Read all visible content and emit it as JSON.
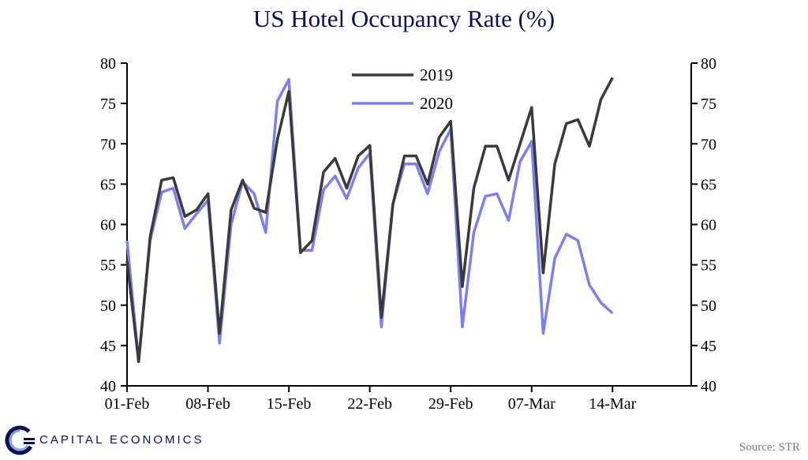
{
  "header": {
    "title": "US Hotel Occupancy Rate (%)"
  },
  "footer": {
    "brand": "CAPITAL ECONOMICS",
    "source": "Source: STR"
  },
  "colors": {
    "series_2019": "#3a3a3a",
    "series_2020": "#7e7ef2",
    "brand": "#0a1150"
  },
  "chart_data": {
    "type": "line",
    "x_axis_type": "daily",
    "x_start": "01-Feb",
    "x_ticks": [
      "01-Feb",
      "08-Feb",
      "15-Feb",
      "22-Feb",
      "29-Feb",
      "07-Mar",
      "14-Mar"
    ],
    "xlabel": "",
    "ylabel": "",
    "ylim": [
      40,
      80
    ],
    "y_ticks": [
      40,
      45,
      50,
      55,
      60,
      65,
      70,
      75,
      80
    ],
    "y_ticks_right": [
      40,
      45,
      50,
      55,
      60,
      65,
      70,
      75,
      80
    ],
    "grid": false,
    "legend_position": "top-center",
    "series": [
      {
        "name": "2019",
        "color": "#3a3a3a",
        "values": [
          55.5,
          43.0,
          58.5,
          65.5,
          65.8,
          61.0,
          61.8,
          63.8,
          46.5,
          61.8,
          65.5,
          62.0,
          61.5,
          70.5,
          76.5,
          56.5,
          58.0,
          66.5,
          68.2,
          64.5,
          68.5,
          69.8,
          48.5,
          62.5,
          68.5,
          68.5,
          65.0,
          70.8,
          72.8,
          52.3,
          64.5,
          69.7,
          69.7,
          65.5,
          70.0,
          74.5,
          54.0,
          67.5,
          72.5,
          73.0,
          69.7,
          75.5,
          78.2
        ]
      },
      {
        "name": "2020",
        "color": "#7e7ef2",
        "values": [
          58.0,
          43.0,
          58.0,
          64.0,
          64.5,
          59.5,
          61.3,
          63.0,
          45.3,
          60.0,
          65.3,
          63.8,
          59.0,
          75.3,
          78.0,
          56.8,
          56.8,
          64.3,
          66.0,
          63.2,
          67.0,
          68.8,
          47.3,
          62.5,
          67.5,
          67.5,
          63.8,
          69.0,
          71.8,
          47.3,
          59.0,
          63.5,
          63.8,
          60.5,
          67.8,
          70.3,
          46.5,
          55.8,
          58.8,
          58.0,
          52.5,
          50.3,
          49.0
        ]
      }
    ]
  }
}
